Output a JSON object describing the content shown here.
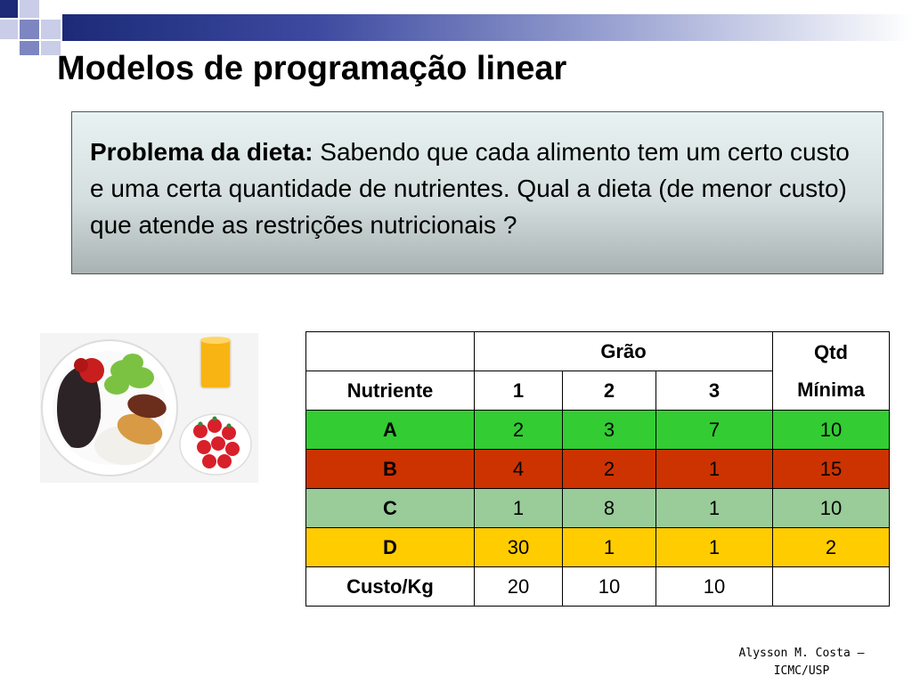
{
  "slide": {
    "title": "Modelos de programação linear",
    "problem": {
      "label": "Problema da dieta:",
      "text": "Sabendo que cada alimento tem um certo custo e uma certa quantidade de nutrientes. Qual a dieta (de menor custo) que atende as restrições nutricionais ?"
    },
    "table": {
      "group_header": "Grão",
      "qtd_header_line1": "Qtd",
      "qtd_header_line2": "Mínima",
      "row_header": "Nutriente",
      "grain_columns": [
        "1",
        "2",
        "3"
      ],
      "rows": [
        {
          "name": "A",
          "values": [
            "2",
            "3",
            "7"
          ],
          "min": "10",
          "color": "#33cc33"
        },
        {
          "name": "B",
          "values": [
            "4",
            "2",
            "1"
          ],
          "min": "15",
          "color": "#cc3300"
        },
        {
          "name": "C",
          "values": [
            "1",
            "8",
            "1"
          ],
          "min": "10",
          "color": "#99cc99"
        },
        {
          "name": "D",
          "values": [
            "30",
            "1",
            "1"
          ],
          "min": "2",
          "color": "#ffcc00"
        }
      ],
      "cost_row": {
        "name": "Custo/Kg",
        "values": [
          "20",
          "10",
          "10"
        ],
        "min": ""
      }
    },
    "footer_line1": "Alysson M. Costa –",
    "footer_line2": "ICMC/USP"
  }
}
